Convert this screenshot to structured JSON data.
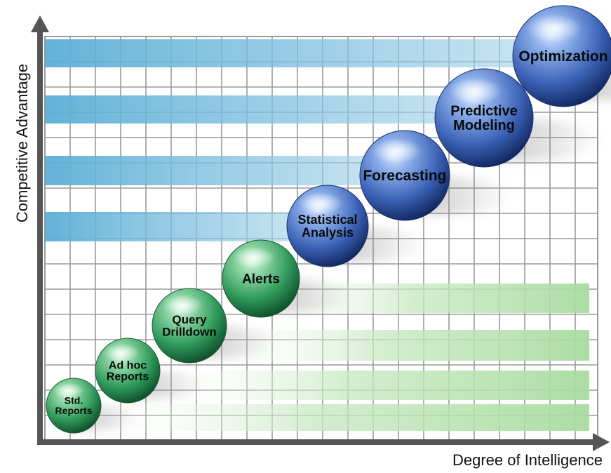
{
  "axes": {
    "y_label": "Competitive Advantage",
    "x_label": "Degree of Intelligence"
  },
  "stages": [
    {
      "label": "Std. Reports",
      "lines": [
        "Std.",
        "Reports"
      ],
      "group": "green"
    },
    {
      "label": "Ad hoc Reports",
      "lines": [
        "Ad hoc",
        "Reports"
      ],
      "group": "green"
    },
    {
      "label": "Query Drilldown",
      "lines": [
        "Query",
        "Drilldown"
      ],
      "group": "green"
    },
    {
      "label": "Alerts",
      "lines": [
        "Alerts"
      ],
      "group": "green"
    },
    {
      "label": "Statistical Analysis",
      "lines": [
        "Statistical",
        "Analysis"
      ],
      "group": "blue"
    },
    {
      "label": "Forecasting",
      "lines": [
        "Forecasting"
      ],
      "group": "blue"
    },
    {
      "label": "Predictive Modeling",
      "lines": [
        "Predictive",
        "Modeling"
      ],
      "group": "blue"
    },
    {
      "label": "Optimization",
      "lines": [
        "Optimization"
      ],
      "group": "blue"
    }
  ],
  "colors": {
    "green_ball": "#2f9a5a",
    "blue_ball": "#2f4f9e",
    "blue_band": "#5aaed6",
    "green_band": "#a8dba0",
    "grid_line": "#9a9a9a",
    "axis": "#555555"
  }
}
